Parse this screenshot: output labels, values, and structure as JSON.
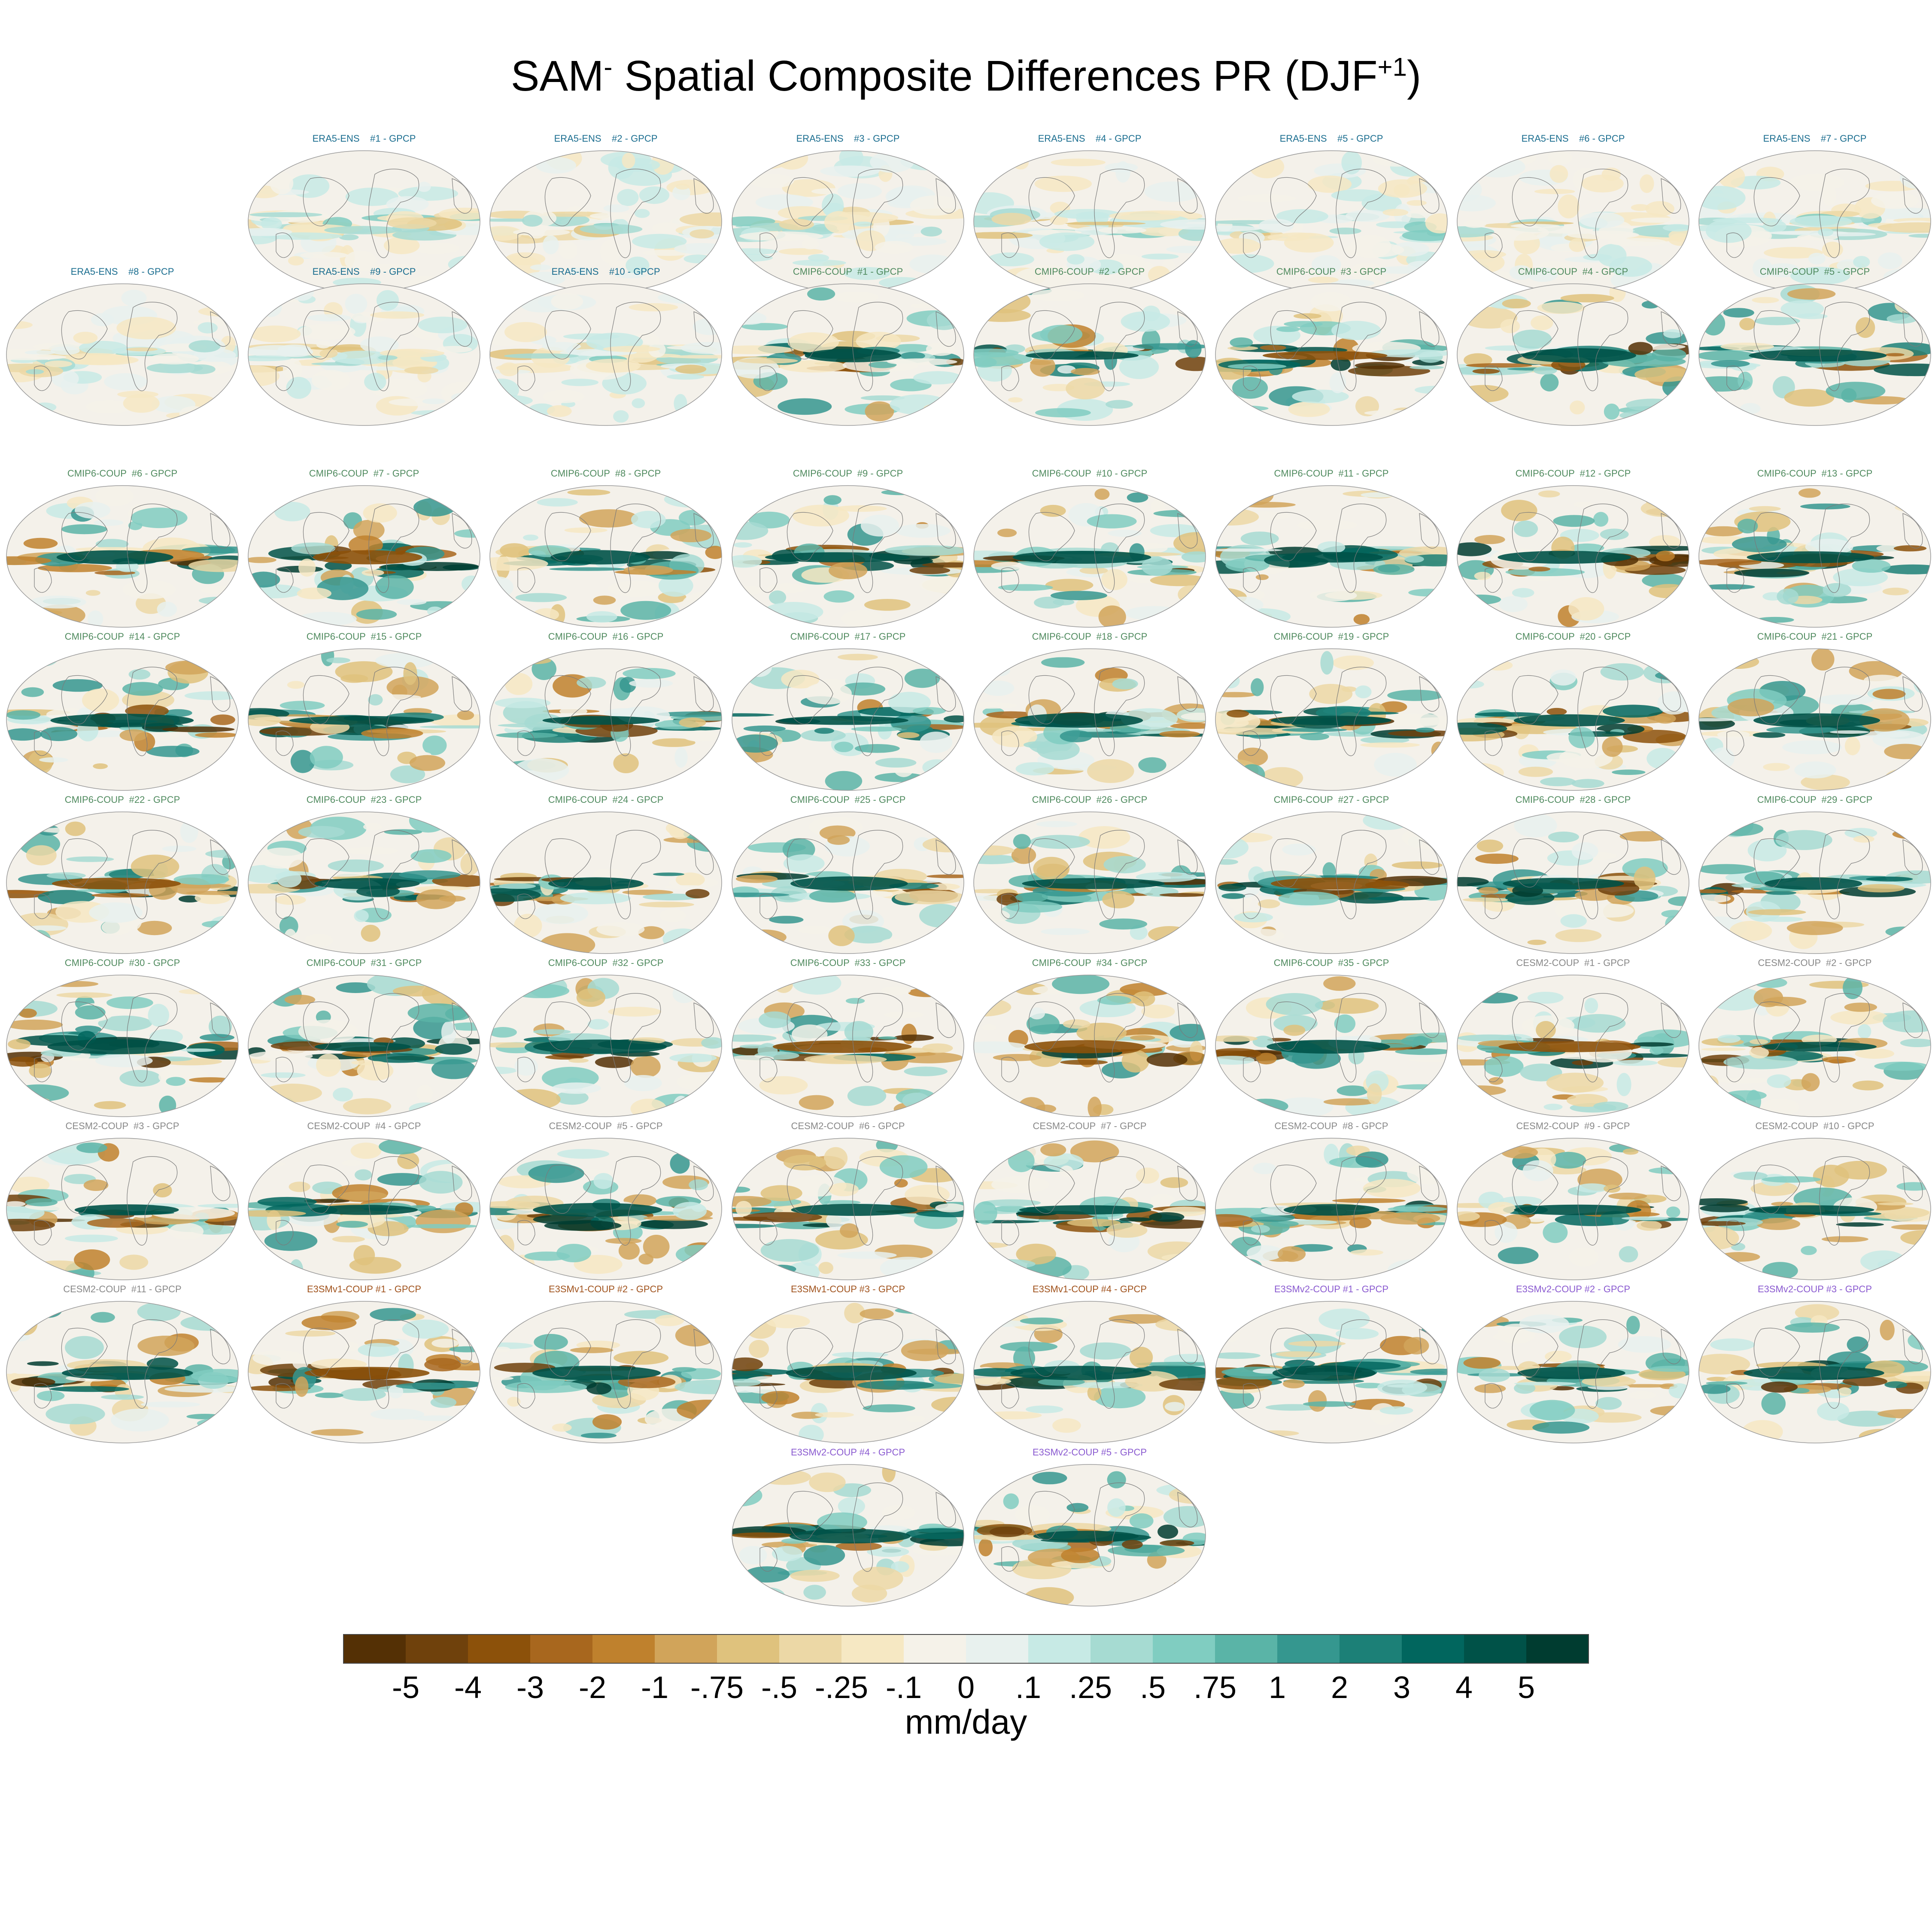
{
  "title": {
    "main": "SAM",
    "sup1": "-",
    "rest": " Spatial Composite Differences PR (DJF",
    "sup2": "+1",
    "close": ")"
  },
  "group_colors": {
    "ERA5-ENS": "#1a6d8f",
    "CMIP6-COUP": "#4f8a5e",
    "CESM2-COUP": "#888888",
    "E3SMv1-COUP": "#a0521c",
    "E3SMv2-COUP": "#8a5ad0"
  },
  "panels": [
    {
      "label": "ERA5-ENS    #1 - GPCP",
      "group": "ERA5-ENS"
    },
    {
      "label": "ERA5-ENS    #2 - GPCP",
      "group": "ERA5-ENS"
    },
    {
      "label": "ERA5-ENS    #3 - GPCP",
      "group": "ERA5-ENS"
    },
    {
      "label": "ERA5-ENS    #4 - GPCP",
      "group": "ERA5-ENS"
    },
    {
      "label": "ERA5-ENS    #5 - GPCP",
      "group": "ERA5-ENS"
    },
    {
      "label": "ERA5-ENS    #6 - GPCP",
      "group": "ERA5-ENS"
    },
    {
      "label": "ERA5-ENS    #7 - GPCP",
      "group": "ERA5-ENS"
    },
    {
      "label": "ERA5-ENS    #8 - GPCP",
      "group": "ERA5-ENS"
    },
    {
      "label": "ERA5-ENS    #9 - GPCP",
      "group": "ERA5-ENS"
    },
    {
      "label": "ERA5-ENS    #10 - GPCP",
      "group": "ERA5-ENS"
    },
    {
      "label": "CMIP6-COUP  #1 - GPCP",
      "group": "CMIP6-COUP"
    },
    {
      "label": "CMIP6-COUP  #2 - GPCP",
      "group": "CMIP6-COUP"
    },
    {
      "label": "CMIP6-COUP  #3 - GPCP",
      "group": "CMIP6-COUP"
    },
    {
      "label": "CMIP6-COUP  #4 - GPCP",
      "group": "CMIP6-COUP"
    },
    {
      "label": "CMIP6-COUP  #5 - GPCP",
      "group": "CMIP6-COUP"
    },
    {
      "label": "CMIP6-COUP  #6 - GPCP",
      "group": "CMIP6-COUP"
    },
    {
      "label": "CMIP6-COUP  #7 - GPCP",
      "group": "CMIP6-COUP"
    },
    {
      "label": "CMIP6-COUP  #8 - GPCP",
      "group": "CMIP6-COUP"
    },
    {
      "label": "CMIP6-COUP  #9 - GPCP",
      "group": "CMIP6-COUP"
    },
    {
      "label": "CMIP6-COUP  #10 - GPCP",
      "group": "CMIP6-COUP"
    },
    {
      "label": "CMIP6-COUP  #11 - GPCP",
      "group": "CMIP6-COUP"
    },
    {
      "label": "CMIP6-COUP  #12 - GPCP",
      "group": "CMIP6-COUP"
    },
    {
      "label": "CMIP6-COUP  #13 - GPCP",
      "group": "CMIP6-COUP"
    },
    {
      "label": "CMIP6-COUP  #14 - GPCP",
      "group": "CMIP6-COUP"
    },
    {
      "label": "CMIP6-COUP  #15 - GPCP",
      "group": "CMIP6-COUP"
    },
    {
      "label": "CMIP6-COUP  #16 - GPCP",
      "group": "CMIP6-COUP"
    },
    {
      "label": "CMIP6-COUP  #17 - GPCP",
      "group": "CMIP6-COUP"
    },
    {
      "label": "CMIP6-COUP  #18 - GPCP",
      "group": "CMIP6-COUP"
    },
    {
      "label": "CMIP6-COUP  #19 - GPCP",
      "group": "CMIP6-COUP"
    },
    {
      "label": "CMIP6-COUP  #20 - GPCP",
      "group": "CMIP6-COUP"
    },
    {
      "label": "CMIP6-COUP  #21 - GPCP",
      "group": "CMIP6-COUP"
    },
    {
      "label": "CMIP6-COUP  #22 - GPCP",
      "group": "CMIP6-COUP"
    },
    {
      "label": "CMIP6-COUP  #23 - GPCP",
      "group": "CMIP6-COUP"
    },
    {
      "label": "CMIP6-COUP  #24 - GPCP",
      "group": "CMIP6-COUP"
    },
    {
      "label": "CMIP6-COUP  #25 - GPCP",
      "group": "CMIP6-COUP"
    },
    {
      "label": "CMIP6-COUP  #26 - GPCP",
      "group": "CMIP6-COUP"
    },
    {
      "label": "CMIP6-COUP  #27 - GPCP",
      "group": "CMIP6-COUP"
    },
    {
      "label": "CMIP6-COUP  #28 - GPCP",
      "group": "CMIP6-COUP"
    },
    {
      "label": "CMIP6-COUP  #29 - GPCP",
      "group": "CMIP6-COUP"
    },
    {
      "label": "CMIP6-COUP  #30 - GPCP",
      "group": "CMIP6-COUP"
    },
    {
      "label": "CMIP6-COUP  #31 - GPCP",
      "group": "CMIP6-COUP"
    },
    {
      "label": "CMIP6-COUP  #32 - GPCP",
      "group": "CMIP6-COUP"
    },
    {
      "label": "CMIP6-COUP  #33 - GPCP",
      "group": "CMIP6-COUP"
    },
    {
      "label": "CMIP6-COUP  #34 - GPCP",
      "group": "CMIP6-COUP"
    },
    {
      "label": "CMIP6-COUP  #35 - GPCP",
      "group": "CMIP6-COUP"
    },
    {
      "label": "CESM2-COUP  #1 - GPCP",
      "group": "CESM2-COUP"
    },
    {
      "label": "CESM2-COUP  #2 - GPCP",
      "group": "CESM2-COUP"
    },
    {
      "label": "CESM2-COUP  #3 - GPCP",
      "group": "CESM2-COUP"
    },
    {
      "label": "CESM2-COUP  #4 - GPCP",
      "group": "CESM2-COUP"
    },
    {
      "label": "CESM2-COUP  #5 - GPCP",
      "group": "CESM2-COUP"
    },
    {
      "label": "CESM2-COUP  #6 - GPCP",
      "group": "CESM2-COUP"
    },
    {
      "label": "CESM2-COUP  #7 - GPCP",
      "group": "CESM2-COUP"
    },
    {
      "label": "CESM2-COUP  #8 - GPCP",
      "group": "CESM2-COUP"
    },
    {
      "label": "CESM2-COUP  #9 - GPCP",
      "group": "CESM2-COUP"
    },
    {
      "label": "CESM2-COUP  #10 - GPCP",
      "group": "CESM2-COUP"
    },
    {
      "label": "CESM2-COUP  #11 - GPCP",
      "group": "CESM2-COUP"
    },
    {
      "label": "E3SMv1-COUP #1 - GPCP",
      "group": "E3SMv1-COUP"
    },
    {
      "label": "E3SMv1-COUP #2 - GPCP",
      "group": "E3SMv1-COUP"
    },
    {
      "label": "E3SMv1-COUP #3 - GPCP",
      "group": "E3SMv1-COUP"
    },
    {
      "label": "E3SMv1-COUP #4 - GPCP",
      "group": "E3SMv1-COUP"
    },
    {
      "label": "E3SMv2-COUP #1 - GPCP",
      "group": "E3SMv2-COUP"
    },
    {
      "label": "E3SMv2-COUP #2 - GPCP",
      "group": "E3SMv2-COUP"
    },
    {
      "label": "E3SMv2-COUP #3 - GPCP",
      "group": "E3SMv2-COUP"
    },
    {
      "label": "E3SMv2-COUP #4 - GPCP",
      "group": "E3SMv2-COUP"
    },
    {
      "label": "E3SMv2-COUP #5 - GPCP",
      "group": "E3SMv2-COUP"
    }
  ],
  "chart_data": {
    "type": "heatmap",
    "projection": "global map (Robinson-like)",
    "variable": "PR",
    "season": "DJF+1",
    "colorbar": {
      "units": "mm/day",
      "tick_labels": [
        "-5",
        "-4",
        "-3",
        "-2",
        "-1",
        "-.75",
        "-.5",
        "-.25",
        "-.1",
        "0",
        ".1",
        ".25",
        ".5",
        ".75",
        "1",
        "2",
        "3",
        "4",
        "5"
      ],
      "colors": [
        "#543005",
        "#6f410c",
        "#8c510a",
        "#a8671e",
        "#bf812d",
        "#d1a45a",
        "#dfc27d",
        "#ecd8a6",
        "#f6e8c3",
        "#f5f2e9",
        "#e8f1ee",
        "#c7eae5",
        "#a6dbd2",
        "#80cdc1",
        "#5ab4a7",
        "#35978f",
        "#1c8077",
        "#01665e",
        "#005248",
        "#003c30"
      ]
    }
  }
}
